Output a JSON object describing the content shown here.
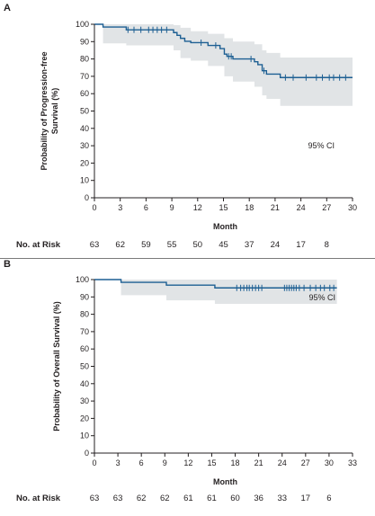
{
  "colors": {
    "curve": "#1d5f93",
    "ci_band": "#e1e4e6",
    "axis": "#231f20",
    "separator": "#7a7a7a"
  },
  "chart_data": [
    {
      "type": "line",
      "panel": "A",
      "title": "",
      "xlabel": "Month",
      "ylabel": "Probability of Progression-free Survival (%)",
      "ylabel_lines": [
        "Probability of Progression-free",
        "Survival (%)"
      ],
      "xlim": [
        0,
        30
      ],
      "ylim": [
        0,
        100
      ],
      "xticks": [
        0,
        3,
        6,
        9,
        12,
        15,
        18,
        21,
        24,
        27,
        30
      ],
      "yticks": [
        0,
        10,
        20,
        30,
        40,
        50,
        60,
        70,
        80,
        90,
        100
      ],
      "grid": false,
      "ci_label": "95% CI",
      "step_curve": [
        [
          0,
          100
        ],
        [
          1,
          98.4
        ],
        [
          3.7,
          96.8
        ],
        [
          9.2,
          95.2
        ],
        [
          9.6,
          93.6
        ],
        [
          10.0,
          91.9
        ],
        [
          10.5,
          90.2
        ],
        [
          11.2,
          89.4
        ],
        [
          13.2,
          87.8
        ],
        [
          14.6,
          86.0
        ],
        [
          15.1,
          82.8
        ],
        [
          15.4,
          81.5
        ],
        [
          16.1,
          80.0
        ],
        [
          18.6,
          78.4
        ],
        [
          19.0,
          76.7
        ],
        [
          19.5,
          73.2
        ],
        [
          20.0,
          71.3
        ],
        [
          21.6,
          69.3
        ],
        [
          30,
          69.3
        ]
      ],
      "ci_upper": [
        [
          0,
          100
        ],
        [
          1,
          100
        ],
        [
          3.7,
          100
        ],
        [
          9.2,
          99.5
        ],
        [
          10.0,
          98.0
        ],
        [
          11.2,
          96.0
        ],
        [
          13.2,
          94.5
        ],
        [
          15.1,
          92.0
        ],
        [
          16.1,
          90.0
        ],
        [
          18.6,
          88.5
        ],
        [
          19.5,
          85.0
        ],
        [
          20.0,
          83.5
        ],
        [
          21.6,
          80.8
        ],
        [
          30,
          80.8
        ]
      ],
      "ci_lower": [
        [
          0,
          100
        ],
        [
          1,
          89.0
        ],
        [
          3.7,
          87.8
        ],
        [
          9.2,
          85.0
        ],
        [
          10.0,
          80.5
        ],
        [
          11.2,
          79.0
        ],
        [
          13.2,
          76.0
        ],
        [
          15.1,
          70.0
        ],
        [
          16.1,
          67.0
        ],
        [
          18.6,
          64.0
        ],
        [
          19.5,
          59.0
        ],
        [
          20.0,
          57.0
        ],
        [
          21.6,
          53.0
        ],
        [
          30,
          53.0
        ]
      ],
      "censor_marks": [
        [
          3.9,
          96.8
        ],
        [
          4.6,
          96.8
        ],
        [
          5.4,
          96.8
        ],
        [
          6.3,
          96.8
        ],
        [
          6.8,
          96.8
        ],
        [
          7.3,
          96.8
        ],
        [
          7.8,
          96.8
        ],
        [
          8.4,
          96.8
        ],
        [
          12.4,
          89.4
        ],
        [
          14.1,
          87.8
        ],
        [
          15.6,
          81.5
        ],
        [
          15.9,
          81.5
        ],
        [
          18.2,
          80.0
        ],
        [
          19.7,
          73.2
        ],
        [
          22.2,
          69.3
        ],
        [
          23.1,
          69.3
        ],
        [
          24.6,
          69.3
        ],
        [
          25.8,
          69.3
        ],
        [
          26.5,
          69.3
        ],
        [
          27.3,
          69.3
        ],
        [
          27.8,
          69.3
        ],
        [
          28.5,
          69.3
        ],
        [
          29.2,
          69.3
        ]
      ],
      "risk_table": {
        "label": "No. at Risk",
        "months": [
          0,
          3,
          6,
          9,
          12,
          15,
          18,
          21,
          24,
          27
        ],
        "values": [
          "63",
          "62",
          "59",
          "55",
          "50",
          "45",
          "37",
          "24",
          "17",
          "8"
        ]
      }
    },
    {
      "type": "line",
      "panel": "B",
      "title": "",
      "xlabel": "Month",
      "ylabel": "Probability of Overall Survival (%)",
      "ylabel_lines": [
        "Probability of Overall Survival (%)"
      ],
      "xlim": [
        0,
        33
      ],
      "ylim": [
        0,
        100
      ],
      "xticks": [
        0,
        3,
        6,
        9,
        12,
        15,
        18,
        21,
        24,
        27,
        30,
        33
      ],
      "yticks": [
        0,
        10,
        20,
        30,
        40,
        50,
        60,
        70,
        80,
        90,
        100
      ],
      "grid": false,
      "ci_label": "95% CI",
      "step_curve": [
        [
          0,
          100
        ],
        [
          3.4,
          98.4
        ],
        [
          9.2,
          96.8
        ],
        [
          15.4,
          95.2
        ],
        [
          31,
          95.2
        ]
      ],
      "ci_upper": [
        [
          0,
          100
        ],
        [
          31,
          100
        ]
      ],
      "ci_lower": [
        [
          0,
          100
        ],
        [
          3.4,
          91.0
        ],
        [
          9.2,
          88.0
        ],
        [
          15.4,
          86.0
        ],
        [
          31,
          86.0
        ]
      ],
      "censor_marks": [
        [
          18.2,
          95.2
        ],
        [
          18.7,
          95.2
        ],
        [
          19.1,
          95.2
        ],
        [
          19.5,
          95.2
        ],
        [
          19.8,
          95.2
        ],
        [
          20.2,
          95.2
        ],
        [
          20.6,
          95.2
        ],
        [
          21.0,
          95.2
        ],
        [
          21.4,
          95.2
        ],
        [
          24.3,
          95.2
        ],
        [
          24.6,
          95.2
        ],
        [
          24.9,
          95.2
        ],
        [
          25.2,
          95.2
        ],
        [
          25.5,
          95.2
        ],
        [
          25.8,
          95.2
        ],
        [
          26.2,
          95.2
        ],
        [
          26.8,
          95.2
        ],
        [
          27.6,
          95.2
        ],
        [
          28.3,
          95.2
        ],
        [
          28.9,
          95.2
        ],
        [
          29.4,
          95.2
        ],
        [
          30.1,
          95.2
        ],
        [
          30.6,
          95.2
        ]
      ],
      "risk_table": {
        "label": "No. at Risk",
        "months": [
          0,
          3,
          6,
          9,
          12,
          15,
          18,
          21,
          24,
          27,
          30
        ],
        "values": [
          "63",
          "63",
          "62",
          "62",
          "61",
          "61",
          "60",
          "36",
          "33",
          "17",
          "6"
        ]
      }
    }
  ]
}
